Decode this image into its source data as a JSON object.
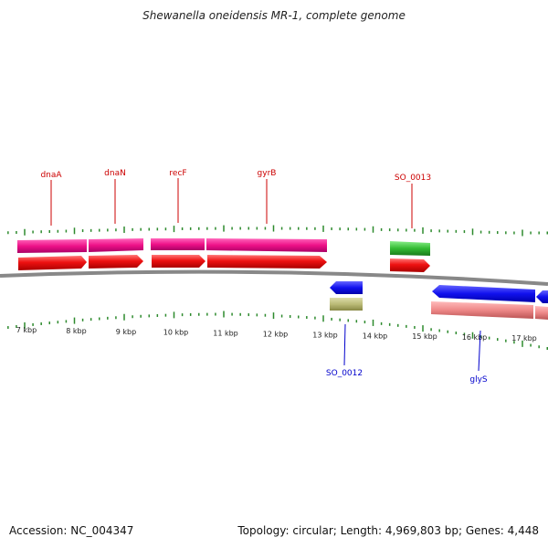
{
  "title": "Shewanella oneidensis MR-1, complete genome",
  "footer": {
    "accession": "Accession: NC_004347",
    "summary": "Topology: circular; Length: 4,969,803 bp; Genes: 4,448"
  },
  "colors": {
    "gene_label_top": "#cc0000",
    "gene_label_bottom": "#0000cc",
    "backbone": "#888888",
    "tick": "#2d8a2d",
    "forward_cds": "#ee1111",
    "forward_gene": "#ee1188",
    "forward_rna": "#33bb33",
    "reverse_cds": "#1111ee",
    "reverse_gene": "#ee8888",
    "reverse_rna": "#bbbb77"
  },
  "scale": {
    "unit": "kbp",
    "labels": [
      "7 kbp",
      "8 kbp",
      "9 kbp",
      "10 kbp",
      "11 kbp",
      "12 kbp",
      "13 kbp",
      "14 kbp",
      "15 kbp",
      "16 kbp",
      "17 kbp"
    ]
  },
  "genes_top": [
    {
      "name": "dnaA"
    },
    {
      "name": "dnaN"
    },
    {
      "name": "recF"
    },
    {
      "name": "gyrB"
    },
    {
      "name": "SO_0013"
    }
  ],
  "genes_bottom": [
    {
      "name": "SO_0012"
    },
    {
      "name": "glyS"
    }
  ]
}
